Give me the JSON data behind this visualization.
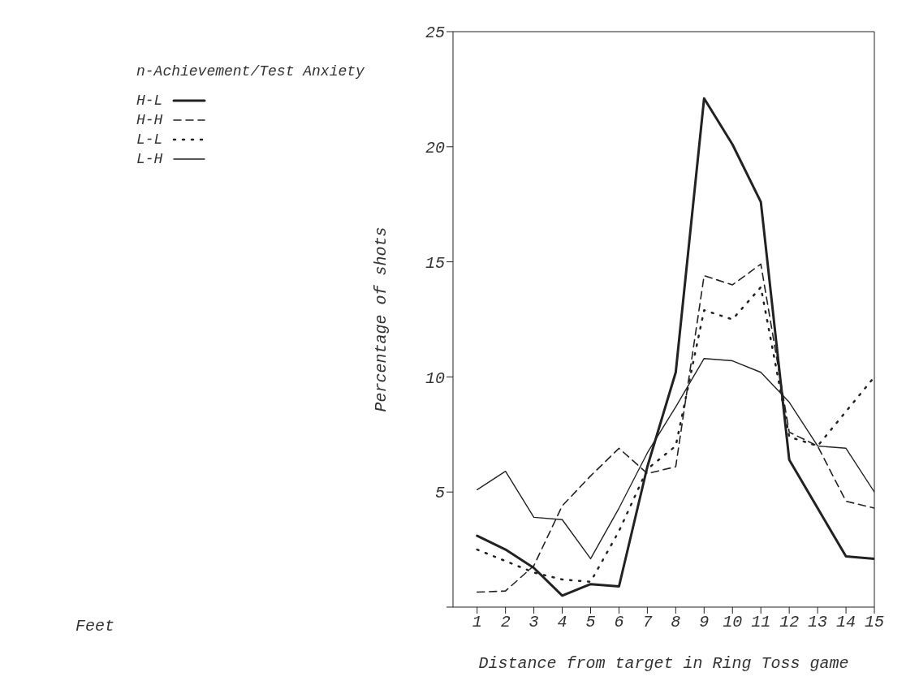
{
  "chart_data": {
    "type": "line",
    "xlabel": "Distance from target in Ring Toss game",
    "ylabel": "Percentage of shots",
    "legend_title": "n-Achievement/Test Anxiety",
    "annotations": [
      "Feet"
    ],
    "x": [
      1,
      2,
      3,
      4,
      5,
      6,
      7,
      8,
      9,
      10,
      11,
      12,
      13,
      14,
      15
    ],
    "series": [
      {
        "name": "H-L",
        "color": "#222222",
        "line_style": "solid",
        "values": [
          3.1,
          2.5,
          1.7,
          0.5,
          1.0,
          0.9,
          6.1,
          10.2,
          22.1,
          20.1,
          17.6,
          6.4,
          4.3,
          2.2,
          2.1
        ]
      },
      {
        "name": "H-H",
        "color": "#222222",
        "line_style": "dashed",
        "values": [
          0.65,
          0.7,
          1.8,
          4.4,
          5.7,
          6.9,
          5.8,
          6.1,
          14.4,
          14.0,
          14.9,
          7.6,
          7.0,
          4.6,
          4.3
        ]
      },
      {
        "name": "L-L",
        "color": "#222222",
        "line_style": "dotted",
        "values": [
          2.5,
          2.0,
          1.5,
          1.2,
          1.1,
          3.3,
          6.0,
          7.0,
          12.9,
          12.5,
          13.9,
          7.4,
          7.0,
          8.5,
          10.0
        ]
      },
      {
        "name": "L-H",
        "color": "#222222",
        "line_style": "solid",
        "values": [
          5.1,
          5.9,
          3.9,
          3.8,
          2.1,
          4.3,
          6.7,
          8.7,
          10.8,
          10.7,
          10.2,
          8.9,
          7.0,
          6.9,
          5.0
        ]
      }
    ],
    "xlim": [
      0.15,
      15
    ],
    "xticks": [
      1,
      2,
      3,
      4,
      5,
      6,
      7,
      8,
      9,
      10,
      11,
      12,
      13,
      14,
      15
    ],
    "ylim": [
      0,
      25
    ],
    "yticks": [
      {
        "value": 0,
        "label": null
      },
      5,
      10,
      15,
      20,
      25
    ],
    "grid": false,
    "legend": "top left",
    "marker": "none"
  }
}
